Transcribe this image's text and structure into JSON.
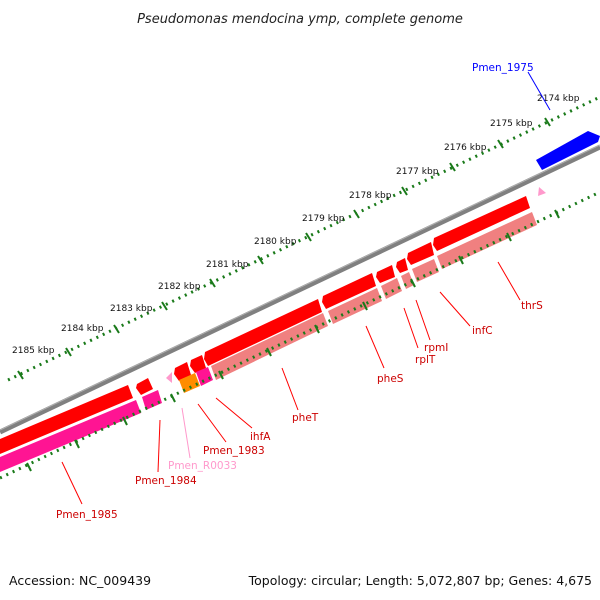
{
  "title": "Pseudomonas mendocina ymp, complete genome",
  "footer": {
    "accession": "Accession: NC_009439",
    "summary": "Topology: circular; Length: 5,072,807 bp; Genes: 4,675"
  },
  "colors": {
    "backbone": "#808080",
    "gene_cds": "#ff0000",
    "gene_blue": "#0000ff",
    "rna_track": "#f08080",
    "pseudo_track": "#ff1493",
    "orange_feature": "#ff8c00",
    "misc_rna": "#ff99cc",
    "tick": "#1a7a1a"
  },
  "scale_labels": [
    "2174 kbp",
    "2175 kbp",
    "2176 kbp",
    "2177 kbp",
    "2178 kbp",
    "2179 kbp",
    "2180 kbp",
    "2181 kbp",
    "2182 kbp",
    "2183 kbp",
    "2184 kbp",
    "2185 kbp"
  ],
  "genes": [
    {
      "name": "Pmen_1975"
    },
    {
      "name": "thrS"
    },
    {
      "name": "infC"
    },
    {
      "name": "rpmI"
    },
    {
      "name": "rplT"
    },
    {
      "name": "pheS"
    },
    {
      "name": "pheT"
    },
    {
      "name": "ihfA"
    },
    {
      "name": "Pmen_1983"
    },
    {
      "name": "Pmen_R0033"
    },
    {
      "name": "Pmen_1984"
    },
    {
      "name": "Pmen_1985"
    }
  ]
}
